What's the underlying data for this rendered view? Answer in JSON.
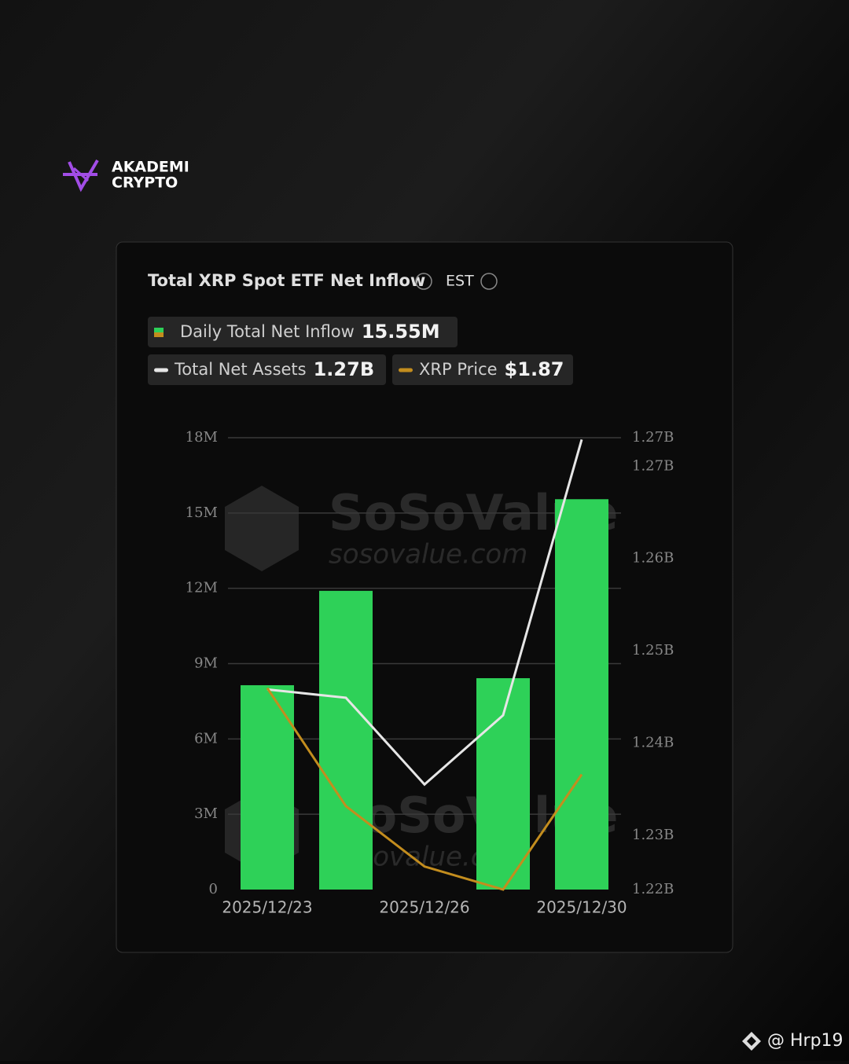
{
  "brand": {
    "line1": "AKADEMI",
    "line2": "CRYPTO"
  },
  "footer": "@ Hrp19",
  "chart_data": {
    "type": "bar",
    "title": "Total XRP Spot ETF Net Inflow",
    "timezone": "EST",
    "watermark": {
      "name": "SoSoValue",
      "url": "sosovalue.com"
    },
    "categories": [
      "2025/12/23",
      null,
      "2025/12/26",
      null,
      "2025/12/30"
    ],
    "series": [
      {
        "name": "Daily Total Net Inflow",
        "latest": "15.55M",
        "type": "bar",
        "color": "#2ed158",
        "values": [
          8.14,
          11.9,
          null,
          8.42,
          15.55
        ]
      },
      {
        "name": "Total Net Assets",
        "latest": "1.27B",
        "type": "line",
        "axis": "y2",
        "color": "#e6e6e6",
        "values": [
          1.2458,
          1.2449,
          1.2355,
          1.243,
          1.2729
        ]
      },
      {
        "name": "XRP Price",
        "latest": "$1.87",
        "type": "line",
        "axis": "y3",
        "color": "#c38d1e",
        "values": [
          1.9,
          1.859,
          1.838,
          1.83,
          1.87
        ]
      }
    ],
    "ylim": [
      0,
      18
    ],
    "yticks": [
      0,
      {
        "value": 3,
        "label": "3M"
      },
      {
        "value": 6,
        "label": "6M"
      },
      {
        "value": 9,
        "label": "9M"
      },
      {
        "value": 12,
        "label": "12M"
      },
      {
        "value": 15,
        "label": "15M"
      },
      {
        "value": 18,
        "label": "18M"
      }
    ],
    "y2lim": [
      1.2241,
      1.2731
    ],
    "y2ticks": [
      {
        "value": 1.2241,
        "label": "1.22B"
      },
      {
        "value": 1.23,
        "label": "1.23B"
      },
      {
        "value": 1.24,
        "label": "1.24B"
      },
      {
        "value": 1.25,
        "label": "1.25B"
      },
      {
        "value": 1.26,
        "label": "1.26B"
      },
      {
        "value": 1.27,
        "label": "1.27B"
      },
      {
        "value": 1.2731,
        "label": "1.27B"
      }
    ],
    "y3lim": [
      1.83,
      1.987
    ],
    "grid": true
  }
}
